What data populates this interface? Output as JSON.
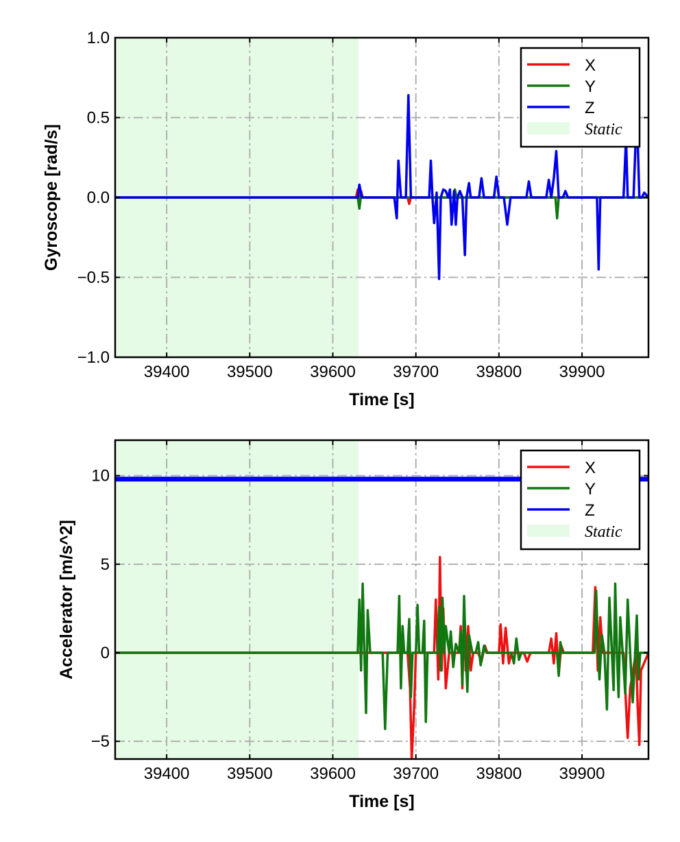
{
  "colors": {
    "x": "#ee1111",
    "y": "#117711",
    "z": "#0000ee",
    "static": "#e6fbe6",
    "grid": "#b0b0b0"
  },
  "chart_data": [
    {
      "type": "line",
      "xlabel": "Time [s]",
      "ylabel": "Gyroscope [rad/s]",
      "xlim": [
        39338,
        39980
      ],
      "ylim": [
        -1.0,
        1.0
      ],
      "xticks": [
        39400,
        39500,
        39600,
        39700,
        39800,
        39900
      ],
      "yticks": [
        -1.0,
        -0.5,
        0.0,
        0.5,
        1.0
      ],
      "ytick_labels": [
        "−1.0",
        "−0.5",
        "0.0",
        "0.5",
        "1.0"
      ],
      "grid": true,
      "legend": "top-right",
      "static_region": {
        "label": "Static",
        "x": [
          39338,
          39631
        ]
      },
      "series": [
        {
          "name": "X",
          "x": [
            39338,
            39628,
            39630,
            39632,
            39634,
            39636,
            39690,
            39692,
            39694,
            39980
          ],
          "y": [
            0,
            0,
            0.05,
            -0.05,
            0.04,
            0,
            0,
            -0.04,
            0,
            0
          ]
        },
        {
          "name": "Y",
          "x": [
            39338,
            39630,
            39632,
            39634,
            39636,
            39745,
            39747,
            39749,
            39868,
            39870,
            39872,
            39980
          ],
          "y": [
            0,
            0,
            -0.07,
            0.02,
            0,
            0,
            0.05,
            0,
            0,
            -0.13,
            0,
            0
          ]
        },
        {
          "name": "Z",
          "x": [
            39338,
            39630,
            39632,
            39635,
            39674,
            39677,
            39679,
            39682,
            39688,
            39691,
            39694,
            39716,
            39718,
            39720,
            39722,
            39725,
            39728,
            39730,
            39733,
            39736,
            39739,
            39741,
            39743,
            39746,
            39748,
            39750,
            39753,
            39756,
            39759,
            39761,
            39764,
            39766,
            39768,
            39776,
            39779,
            39782,
            39794,
            39797,
            39800,
            39806,
            39810,
            39814,
            39833,
            39836,
            39839,
            39857,
            39860,
            39863,
            39866,
            39869,
            39872,
            39877,
            39880,
            39883,
            39886,
            39918,
            39920,
            39922,
            39925,
            39950,
            39953,
            39955,
            39958,
            39962,
            39966,
            39969,
            39972,
            39975,
            39980
          ],
          "y": [
            0,
            0,
            0.08,
            0,
            0,
            -0.13,
            0.23,
            0,
            0,
            0.64,
            0,
            0,
            0.23,
            0,
            -0.16,
            0.03,
            -0.51,
            0,
            0.05,
            0.04,
            0,
            0.05,
            -0.17,
            0.04,
            -0.17,
            0,
            0.04,
            0,
            -0.36,
            0,
            0.09,
            0,
            0,
            0,
            0.12,
            0,
            0,
            0.13,
            0,
            0,
            -0.17,
            0,
            0,
            0.1,
            0,
            0,
            0.11,
            0,
            0.12,
            0.29,
            0,
            0,
            0.04,
            0,
            0,
            0,
            -0.45,
            0,
            0,
            0,
            0.37,
            0,
            0,
            0,
            0.55,
            0,
            0,
            0.03,
            0
          ]
        }
      ]
    },
    {
      "type": "line",
      "xlabel": "Time [s]",
      "ylabel": "Accelerator [m/s^2]",
      "xlim": [
        39338,
        39980
      ],
      "ylim": [
        -6,
        12
      ],
      "xticks": [
        39400,
        39500,
        39600,
        39700,
        39800,
        39900
      ],
      "yticks": [
        -5,
        0,
        5,
        10
      ],
      "ytick_labels": [
        "−5",
        "0",
        "5",
        "10"
      ],
      "grid": true,
      "legend": "top-right",
      "static_region": {
        "label": "Static",
        "x": [
          39338,
          39631
        ]
      },
      "series": [
        {
          "name": "X",
          "x": [
            39338,
            39690,
            39693,
            39695,
            39698,
            39700,
            39722,
            39724,
            39727,
            39729,
            39731,
            39733,
            39736,
            39740,
            39752,
            39754,
            39756,
            39758,
            39760,
            39763,
            39766,
            39769,
            39775,
            39779,
            39783,
            39786,
            39800,
            39802,
            39805,
            39808,
            39812,
            39815,
            39830,
            39834,
            39838,
            39860,
            39863,
            39866,
            39869,
            39872,
            39875,
            39878,
            39913,
            39916,
            39919,
            39922,
            39925,
            39950,
            39953,
            39955,
            39958,
            39965,
            39967,
            39969,
            39971,
            39980
          ],
          "y": [
            0,
            0,
            -2,
            -6,
            -3,
            0,
            0,
            3,
            -1.5,
            5.4,
            -1,
            2.5,
            -2,
            0,
            0,
            1.5,
            -2,
            2.6,
            -1,
            1.5,
            -1,
            0,
            0,
            -0.5,
            0.4,
            0,
            0,
            1.6,
            -0.6,
            1.4,
            -0.6,
            0,
            0,
            -0.5,
            0,
            0,
            0.8,
            -0.6,
            1.1,
            -1.2,
            0.4,
            0,
            0,
            3.7,
            -1,
            2,
            0,
            0,
            -3,
            -4.8,
            -2,
            0,
            -3,
            -5.2,
            -1,
            0
          ]
        },
        {
          "name": "Y",
          "x": [
            39338,
            39630,
            39632,
            39634,
            39636,
            39638,
            39640,
            39642,
            39645,
            39648,
            39660,
            39663,
            39666,
            39678,
            39680,
            39682,
            39684,
            39686,
            39690,
            39692,
            39694,
            39696,
            39700,
            39702,
            39704,
            39708,
            39710,
            39712,
            39714,
            39726,
            39728,
            39730,
            39732,
            39734,
            39736,
            39740,
            39742,
            39745,
            39748,
            39752,
            39754,
            39756,
            39758,
            39760,
            39762,
            39764,
            39766,
            39768,
            39772,
            39775,
            39778,
            39782,
            39785,
            39788,
            39815,
            39818,
            39821,
            39824,
            39827,
            39870,
            39872,
            39874,
            39876,
            39915,
            39917,
            39919,
            39921,
            39924,
            39927,
            39930,
            39933,
            39936,
            39938,
            39940,
            39942,
            39944,
            39946,
            39949,
            39952,
            39955,
            39958,
            39961,
            39964,
            39966,
            39968,
            39970,
            39973,
            39980
          ],
          "y": [
            0,
            0,
            3,
            -1,
            3.9,
            0,
            -3.4,
            2.4,
            0,
            0,
            0,
            -4.3,
            0,
            0,
            3.2,
            -2,
            1.5,
            0,
            0,
            1.9,
            -2.5,
            0,
            0,
            2.7,
            0,
            0,
            1.8,
            -3.9,
            0,
            0,
            2.6,
            -1,
            3.1,
            0,
            1.5,
            0,
            1.2,
            -0.8,
            0.5,
            0,
            1.2,
            -1.8,
            3.2,
            0,
            -2.2,
            1,
            0.5,
            0,
            0,
            0.6,
            -0.7,
            0.4,
            0,
            0,
            0,
            -0.6,
            0.8,
            -0.4,
            0,
            0,
            -1.3,
            0.6,
            0,
            0,
            3.5,
            0.5,
            -1.5,
            1,
            0,
            -3.2,
            3.1,
            0,
            -2.1,
            3.9,
            0,
            -2.5,
            2,
            0,
            -2.3,
            3,
            0,
            -2.8,
            0,
            2.1,
            -1.5,
            0,
            0,
            0
          ]
        },
        {
          "name": "Z",
          "x": [
            39338,
            39980
          ],
          "y": [
            9.8,
            9.8
          ]
        }
      ]
    }
  ]
}
